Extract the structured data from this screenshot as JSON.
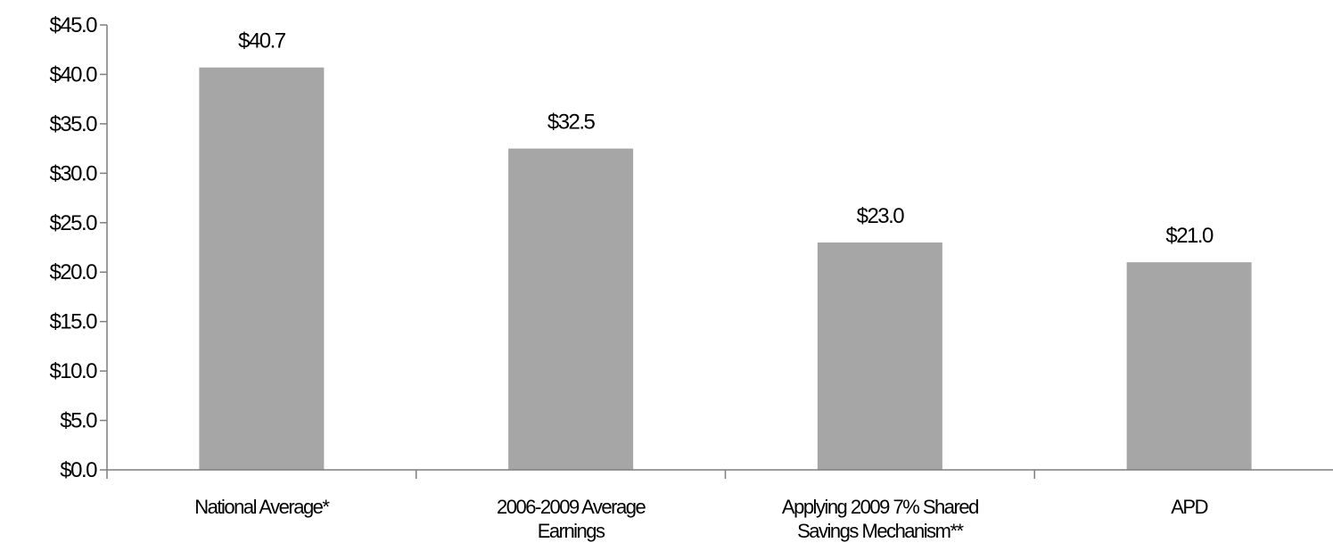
{
  "chart_data": {
    "type": "bar",
    "categories": [
      [
        "National Average*"
      ],
      [
        "2006-2009 Average",
        "Earnings"
      ],
      [
        "Applying 2009 7% Shared",
        "Savings Mechanism**"
      ],
      [
        "APD"
      ]
    ],
    "values": [
      40.7,
      32.5,
      23.0,
      21.0
    ],
    "data_labels": [
      "$40.7",
      "$32.5",
      "$23.0",
      "$21.0"
    ],
    "y_ticks": [
      "$0.0",
      "$5.0",
      "$10.0",
      "$15.0",
      "$20.0",
      "$25.0",
      "$30.0",
      "$35.0",
      "$40.0",
      "$45.0"
    ],
    "ylim": [
      0,
      45
    ],
    "title": "",
    "xlabel": "",
    "ylabel": "",
    "grid": false,
    "bar_color": "#a6a6a6",
    "axis_color": "#7f7f7f"
  }
}
